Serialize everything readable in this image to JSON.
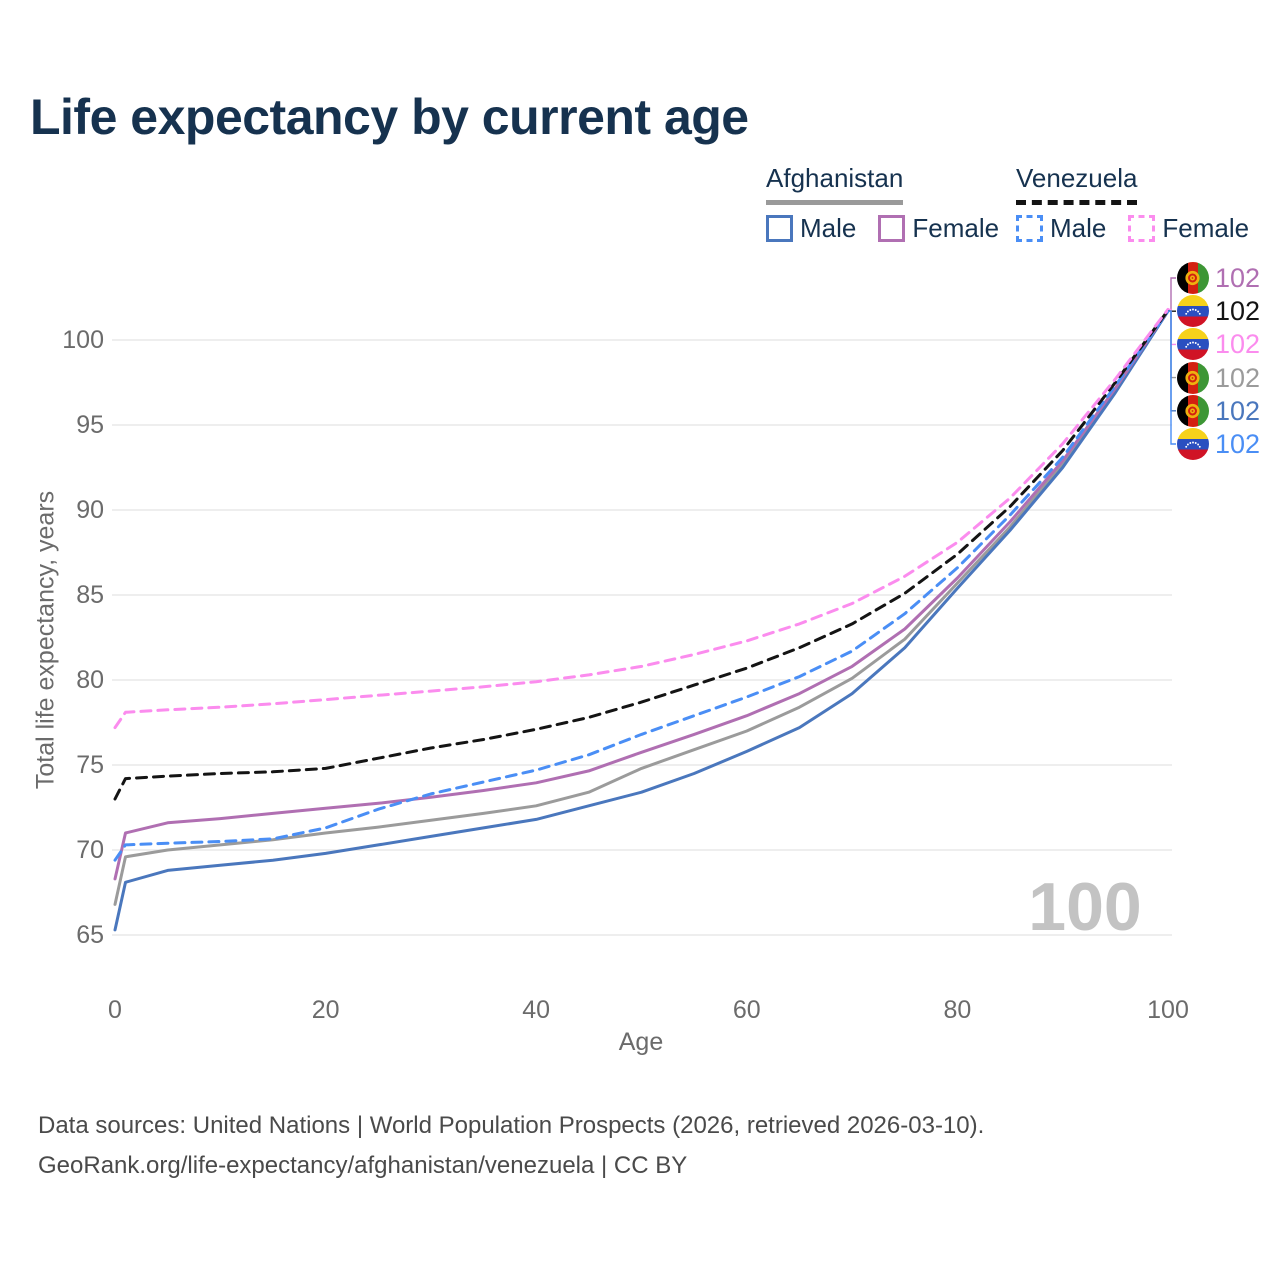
{
  "title": "Life expectancy by current age",
  "hover_age": "100",
  "legend": {
    "groups": [
      {
        "label": "Afghanistan",
        "line_style": "solid",
        "underline_color": "#9a9a9a",
        "items": [
          {
            "label": "Male",
            "color": "#4a77bd"
          },
          {
            "label": "Female",
            "color": "#b06fb2"
          }
        ]
      },
      {
        "label": "Venezuela",
        "line_style": "dashed",
        "underline_color": "#141414",
        "items": [
          {
            "label": "Male",
            "color": "#4a8ef5"
          },
          {
            "label": "Female",
            "color": "#fb8cee"
          }
        ]
      }
    ]
  },
  "chart_data": {
    "type": "line",
    "title": "Life expectancy by current age",
    "xlabel": "Age",
    "ylabel": "Total life expectancy, years",
    "xlim": [
      0,
      100
    ],
    "ylim": [
      62.5,
      104
    ],
    "xticks": [
      0,
      20,
      40,
      60,
      80,
      100
    ],
    "yticks": [
      65,
      70,
      75,
      80,
      85,
      90,
      95,
      100
    ],
    "grid": "horizontal",
    "legend_position": "top-right",
    "x": [
      0,
      1,
      5,
      10,
      15,
      20,
      25,
      30,
      35,
      40,
      45,
      50,
      55,
      60,
      65,
      70,
      75,
      80,
      85,
      90,
      95,
      100
    ],
    "series": [
      {
        "name": "Afghanistan (both sexes)",
        "country": "afghanistan",
        "sex": "both",
        "color": "#9b9b9b",
        "dash": false,
        "values": [
          66.8,
          69.6,
          70.0,
          70.3,
          70.6,
          71.0,
          71.35,
          71.75,
          72.15,
          72.6,
          73.4,
          74.8,
          75.9,
          77.0,
          78.4,
          80.1,
          82.4,
          85.7,
          89.0,
          92.7,
          97.0,
          101.7
        ],
        "end_label": "102"
      },
      {
        "name": "Afghanistan Male",
        "country": "afghanistan",
        "sex": "male",
        "color": "#4a77bd",
        "dash": false,
        "values": [
          65.3,
          68.1,
          68.8,
          69.1,
          69.4,
          69.8,
          70.3,
          70.8,
          71.3,
          71.8,
          72.6,
          73.4,
          74.5,
          75.8,
          77.2,
          79.2,
          81.9,
          85.4,
          88.8,
          92.5,
          96.9,
          101.7
        ],
        "end_label": "102"
      },
      {
        "name": "Afghanistan Female",
        "country": "afghanistan",
        "sex": "female",
        "color": "#b06fb2",
        "dash": false,
        "values": [
          68.3,
          71.0,
          71.6,
          71.85,
          72.15,
          72.45,
          72.75,
          73.1,
          73.5,
          73.95,
          74.65,
          75.75,
          76.8,
          77.9,
          79.2,
          80.8,
          83.0,
          86.0,
          89.3,
          92.9,
          97.15,
          101.75
        ],
        "end_label": "102"
      },
      {
        "name": "Venezuela Male",
        "country": "venezuela",
        "sex": "male",
        "color": "#4a8ef5",
        "dash": true,
        "values": [
          69.4,
          70.3,
          70.4,
          70.5,
          70.65,
          71.3,
          72.4,
          73.3,
          74.0,
          74.7,
          75.6,
          76.8,
          77.9,
          79.0,
          80.2,
          81.7,
          83.9,
          86.6,
          89.7,
          93.1,
          97.3,
          101.7
        ],
        "end_label": "102"
      },
      {
        "name": "Venezuela (both sexes)",
        "country": "venezuela",
        "sex": "both",
        "color": "#141414",
        "dash": true,
        "values": [
          73.0,
          74.2,
          74.35,
          74.5,
          74.6,
          74.8,
          75.4,
          76.0,
          76.5,
          77.1,
          77.8,
          78.7,
          79.7,
          80.7,
          81.9,
          83.3,
          85.1,
          87.4,
          90.2,
          93.5,
          97.5,
          101.75
        ],
        "end_label": "102"
      },
      {
        "name": "Venezuela Female",
        "country": "venezuela",
        "sex": "female",
        "color": "#fb8cee",
        "dash": true,
        "values": [
          77.2,
          78.1,
          78.25,
          78.4,
          78.6,
          78.85,
          79.1,
          79.35,
          79.6,
          79.9,
          80.3,
          80.8,
          81.5,
          82.3,
          83.3,
          84.5,
          86.1,
          88.1,
          90.7,
          93.9,
          97.7,
          101.8
        ],
        "end_label": "102"
      }
    ],
    "end_label_order": [
      2,
      4,
      5,
      0,
      1,
      3
    ]
  },
  "footer": {
    "line1": "Data sources: United Nations | World Population Prospects (2026, retrieved 2026-03-10).",
    "line2": "GeoRank.org/life-expectancy/afghanistan/venezuela | CC BY"
  }
}
